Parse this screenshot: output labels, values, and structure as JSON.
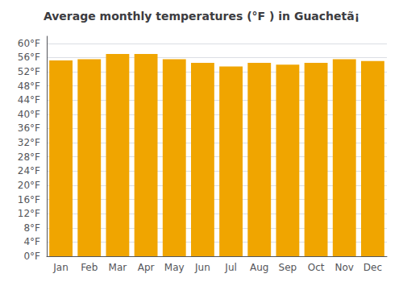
{
  "chart_data": {
    "type": "bar",
    "title": "Average monthly temperatures (°F ) in Guachetã¡",
    "categories": [
      "Jan",
      "Feb",
      "Mar",
      "Apr",
      "May",
      "Jun",
      "Jul",
      "Aug",
      "Sep",
      "Oct",
      "Nov",
      "Dec"
    ],
    "values": [
      55.2,
      55.5,
      57.0,
      57.0,
      55.5,
      54.5,
      53.5,
      54.5,
      54.0,
      54.5,
      55.5,
      55.0
    ],
    "color": "#F0A500",
    "ylim": [
      0,
      62
    ],
    "yticks": [
      {
        "value": 0,
        "label": "0°F"
      },
      {
        "value": 4,
        "label": "4°F"
      },
      {
        "value": 8,
        "label": "8°F"
      },
      {
        "value": 12,
        "label": "12°F"
      },
      {
        "value": 16,
        "label": "16°F"
      },
      {
        "value": 20,
        "label": "20°F"
      },
      {
        "value": 24,
        "label": "24°F"
      },
      {
        "value": 28,
        "label": "28°F"
      },
      {
        "value": 32,
        "label": "32°F"
      },
      {
        "value": 36,
        "label": "36°F"
      },
      {
        "value": 40,
        "label": "40°F"
      },
      {
        "value": 44,
        "label": "44°F"
      },
      {
        "value": 48,
        "label": "48°F"
      },
      {
        "value": 52,
        "label": "52°F"
      },
      {
        "value": 56,
        "label": "56°F"
      },
      {
        "value": 60,
        "label": "60°F"
      }
    ],
    "grid": true
  }
}
